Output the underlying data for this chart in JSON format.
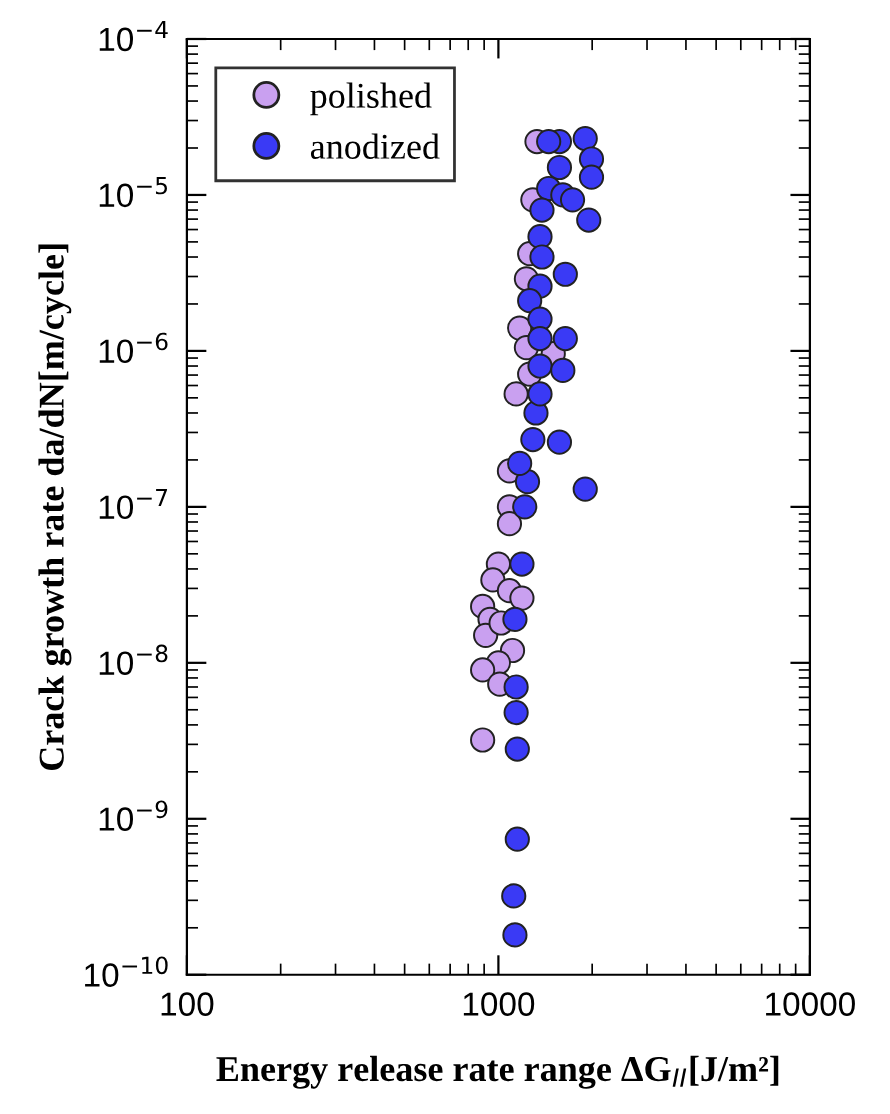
{
  "chart_data": {
    "type": "scatter",
    "xlabel": "Energy release rate range ΔG$_{II}$[J/m²]",
    "ylabel": "Crack growth rate da/dN[m/cycle]",
    "log": "xy",
    "marker": "circle",
    "legend": "top left",
    "grid": false,
    "xlim": [
      100,
      10000
    ],
    "xticks": [
      100,
      1000,
      10000
    ],
    "ylim": [
      1e-10,
      0.0001
    ],
    "yticks": [
      {
        "value": 1e-10,
        "label": "10$^{−10}$"
      },
      {
        "value": 1e-09,
        "label": "10$^{−9}$"
      },
      {
        "value": 1e-08,
        "label": "10$^{−8}$"
      },
      {
        "value": 1e-07,
        "label": "10$^{−7}$"
      },
      {
        "value": 1e-06,
        "label": "10$^{−6}$"
      },
      {
        "value": 1e-05,
        "label": "10$^{−5}$"
      },
      {
        "value": 0.0001,
        "label": "10$^{−4}$"
      }
    ],
    "series": [
      {
        "name": "polished",
        "color": "#c9a0f0",
        "x": [
          890,
          1085,
          1085,
          1085,
          1000,
          960,
          1085,
          890,
          940,
          910,
          1020,
          1110,
          1000,
          890,
          1010,
          1190,
          1330,
          1290,
          1260,
          1230,
          1170,
          1230,
          1500,
          1140,
          1260
        ],
        "values": [
          3.2e-09,
          1.7e-07,
          1e-07,
          7.8e-08,
          4.3e-08,
          3.4e-08,
          2.9e-08,
          2.3e-08,
          1.9e-08,
          1.5e-08,
          1.8e-08,
          1.2e-08,
          1e-08,
          9e-09,
          7.3e-09,
          2.6e-08,
          2.2e-05,
          9.3e-06,
          4.2e-06,
          2.9e-06,
          1.4e-06,
          1.05e-06,
          9.6e-07,
          5.3e-07,
          7.1e-07
        ]
      },
      {
        "name": "anodized",
        "color": "#3a3af5",
        "x": [
          1130,
          1120,
          1150,
          1150,
          1140,
          1140,
          1130,
          1190,
          1215,
          1900,
          1240,
          1170,
          1290,
          1570,
          1320,
          1570,
          1900,
          1990,
          1990,
          1450,
          1570,
          1450,
          1610,
          1730,
          1380,
          1950,
          1360,
          1380,
          1640,
          1360,
          1260,
          1360,
          1360,
          1640,
          1360,
          1610,
          1360
        ],
        "values": [
          1.8e-10,
          3.2e-10,
          7.4e-10,
          2.8e-09,
          4.8e-09,
          7e-09,
          1.9e-08,
          4.3e-08,
          1e-07,
          1.3e-07,
          1.45e-07,
          1.9e-07,
          2.7e-07,
          2.6e-07,
          4e-07,
          2.2e-05,
          2.3e-05,
          1.7e-05,
          1.3e-05,
          2.2e-05,
          1.5e-05,
          1.1e-05,
          1e-05,
          9.3e-06,
          8e-06,
          6.9e-06,
          5.4e-06,
          4e-06,
          3.1e-06,
          2.6e-06,
          2.1e-06,
          1.6e-06,
          1.2e-06,
          1.2e-06,
          8e-07,
          7.5e-07,
          5.3e-07
        ]
      }
    ]
  }
}
